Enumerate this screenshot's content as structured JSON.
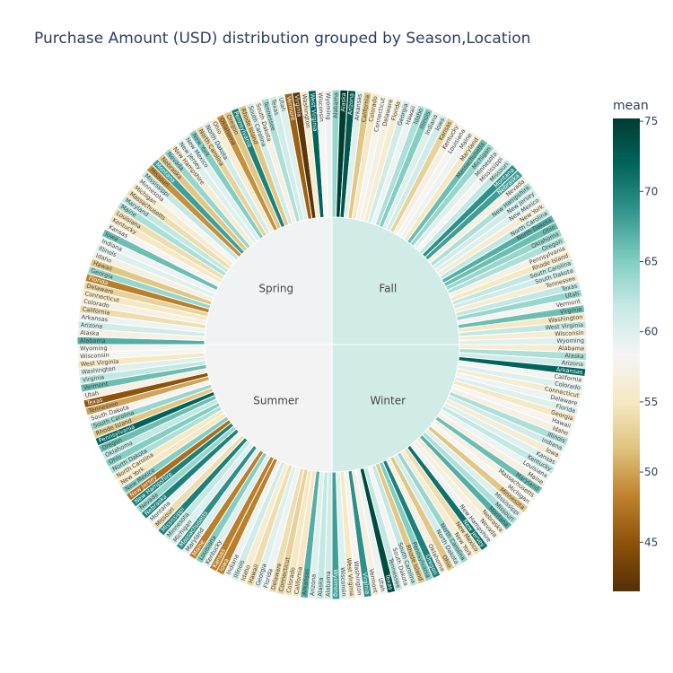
{
  "chart_data": {
    "type": "sunburst",
    "title": "Purchase Amount (USD) distribution grouped by Season,Location",
    "colorbar": {
      "title": "mean",
      "range": [
        41.5,
        75.2
      ],
      "ticks": [
        45,
        50,
        55,
        60,
        65,
        70,
        75
      ],
      "colorscale": [
        "#543005",
        "#8c510a",
        "#bf812d",
        "#dfc27d",
        "#f6e8c3",
        "#f5f5f5",
        "#c7eae5",
        "#80cdc1",
        "#35978f",
        "#01665e",
        "#003c30"
      ]
    },
    "seasons": [
      {
        "name": "Fall",
        "mean": 61.6,
        "color": "#d1ece6"
      },
      {
        "name": "Winter",
        "mean": 60.4,
        "color": "#d1ece6"
      },
      {
        "name": "Summer",
        "mean": 58.4,
        "color": "#f3f3f3"
      },
      {
        "name": "Spring",
        "mean": 58.7,
        "color": "#f0f3f3"
      }
    ],
    "states": [
      "Alabama",
      "Alaska",
      "Arizona",
      "Arkansas",
      "California",
      "Colorado",
      "Connecticut",
      "Delaware",
      "Florida",
      "Georgia",
      "Hawaii",
      "Idaho",
      "Illinois",
      "Indiana",
      "Iowa",
      "Kansas",
      "Kentucky",
      "Louisiana",
      "Maine",
      "Maryland",
      "Massachusetts",
      "Michigan",
      "Minnesota",
      "Mississippi",
      "Missouri",
      "Montana",
      "Nebraska",
      "Nevada",
      "New Hampshire",
      "New Jersey",
      "New Mexico",
      "New York",
      "North Carolina",
      "North Dakota",
      "Ohio",
      "Oklahoma",
      "Oregon",
      "Pennsylvania",
      "Rhode Island",
      "South Carolina",
      "South Dakota",
      "Tennessee",
      "Texas",
      "Utah",
      "Vermont",
      "Virginia",
      "Washington",
      "West Virginia",
      "Wisconsin",
      "Wyoming"
    ],
    "values": {
      "Fall": [
        64,
        75,
        73,
        60,
        52,
        55,
        58,
        57,
        56,
        61,
        59,
        63,
        65,
        60,
        61,
        53,
        57,
        58,
        59,
        55,
        66,
        64,
        60,
        58,
        62,
        69,
        68,
        57,
        63,
        61,
        60,
        56,
        62,
        67,
        66,
        64,
        63,
        57,
        55,
        62,
        61,
        56,
        62,
        64,
        58,
        66,
        55,
        62,
        56,
        60
      ],
      "Winter": [
        56,
        63,
        61,
        72,
        58,
        60,
        56,
        59,
        60,
        55,
        58,
        57,
        63,
        61,
        56,
        60,
        62,
        59,
        57,
        66,
        57,
        58,
        52,
        60,
        63,
        67,
        56,
        57,
        59,
        71,
        54,
        56,
        64,
        61,
        52,
        57,
        70,
        65,
        52,
        62,
        58,
        62,
        74,
        59,
        57,
        69,
        58,
        55,
        60,
        68
      ],
      "Summer": [
        61,
        62,
        60,
        67,
        55,
        55,
        53,
        54,
        59,
        60,
        54,
        56,
        61,
        59,
        48,
        48,
        60,
        65,
        48,
        60,
        69,
        60,
        62,
        70,
        54,
        59,
        70,
        64,
        70,
        47,
        65,
        55,
        55,
        63,
        65,
        62,
        66,
        72,
        52,
        64,
        58,
        50,
        45,
        57,
        66,
        62,
        60,
        55,
        58,
        58
      ],
      "Spring": [
        67,
        57,
        61,
        59,
        54,
        57,
        55,
        53,
        48,
        64,
        52,
        57,
        60,
        59,
        66,
        58,
        55,
        54,
        63,
        62,
        54,
        56,
        58,
        62,
        49,
        68,
        52,
        64,
        56,
        60,
        60,
        65,
        53,
        61,
        56,
        49,
        52,
        70,
        52,
        61,
        57,
        63,
        61,
        60,
        46,
        42,
        56,
        72,
        58,
        59
      ]
    }
  }
}
